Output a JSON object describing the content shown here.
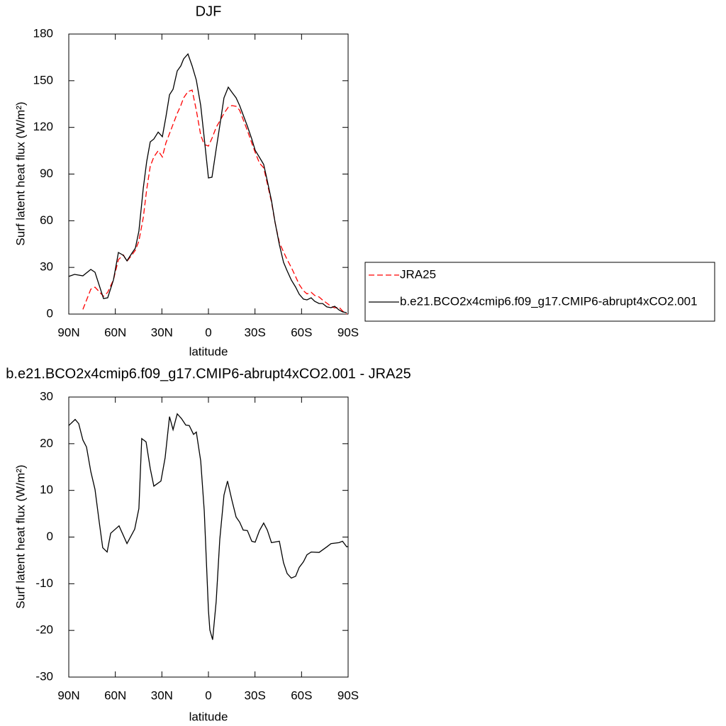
{
  "chart_data": [
    {
      "type": "line",
      "title": "DJF",
      "xlabel": "latitude",
      "ylabel": "Surf latent heat flux (W/m²)",
      "xlim": [
        90,
        -90
      ],
      "xticks": [
        {
          "value": 90,
          "label": "90N"
        },
        {
          "value": 60,
          "label": "60N"
        },
        {
          "value": 30,
          "label": "30N"
        },
        0,
        {
          "value": -30,
          "label": "30S"
        },
        {
          "value": -60,
          "label": "60S"
        },
        {
          "value": -90,
          "label": "90S"
        }
      ],
      "ylim": [
        0,
        180
      ],
      "yticks": [
        0,
        30,
        60,
        90,
        120,
        150,
        180
      ],
      "legend": "right",
      "x": [
        90,
        86.3,
        80.9,
        75.8,
        73.1,
        67.6,
        64.9,
        61.2,
        58,
        54.8,
        52.5,
        49.3,
        47.1,
        44.8,
        42,
        39.8,
        37.5,
        35.2,
        32.4,
        29.7,
        27.4,
        25.1,
        22.8,
        20.1,
        17.8,
        16,
        13.2,
        10.5,
        7.8,
        5,
        2.7,
        0,
        -2.3,
        -5,
        -7.8,
        -10,
        -12.8,
        -15.1,
        -17.8,
        -20.1,
        -22.4,
        -25.1,
        -27.9,
        -30.1,
        -32.9,
        -35.6,
        -37.9,
        -40.6,
        -42.9,
        -45.7,
        -48.4,
        -50.7,
        -53.4,
        -56.2,
        -58.5,
        -61.2,
        -63.5,
        -66.2,
        -68.5,
        -71.3,
        -73.6,
        -76.3,
        -79,
        -81.3,
        -84.1,
        -86.4,
        -89.1
      ],
      "series": [
        {
          "name": "JRA25",
          "color": "#ff0000",
          "linestyle": "dashed",
          "values": [
            null,
            null,
            3,
            16,
            17.3,
            11.4,
            14,
            22,
            35,
            38,
            34,
            38,
            41,
            47,
            62,
            80,
            95,
            101,
            105,
            101,
            110,
            116,
            122,
            129,
            134,
            139,
            143,
            144,
            131,
            115,
            109,
            108,
            113,
            120,
            125,
            129,
            133,
            134,
            133.5,
            131,
            125,
            118,
            110,
            104,
            97,
            94,
            84,
            72,
            59,
            46,
            40,
            35,
            30,
            24,
            19,
            15,
            13,
            14,
            12,
            11,
            9,
            7,
            5,
            4,
            4.5,
            2,
            0
          ]
        },
        {
          "name": "b.e21.BCO2x4cmip6.f09_g17.CMIP6-abrupt4xCO2.001",
          "color": "#000000",
          "linestyle": "solid",
          "values": [
            24.2,
            25.5,
            24.6,
            28.7,
            26.9,
            10,
            10.5,
            21.9,
            39.6,
            37.8,
            34.2,
            39.2,
            42.4,
            53.3,
            81,
            98,
            110.7,
            112.5,
            117,
            114,
            126.7,
            141,
            144.5,
            156.3,
            159.5,
            164,
            167.2,
            159.5,
            150.4,
            134,
            113,
            87.5,
            88,
            106,
            124.4,
            139,
            145.8,
            142.6,
            139,
            134,
            128,
            120.8,
            112.6,
            105.3,
            100.7,
            96.2,
            85.7,
            73,
            59.2,
            44.7,
            33.3,
            27.8,
            21.9,
            17.3,
            12.8,
            9.6,
            9.1,
            10.5,
            8.2,
            6.8,
            6.8,
            4.6,
            4.1,
            5,
            2.7,
            1.4,
            0.9
          ]
        }
      ]
    },
    {
      "type": "line",
      "title": "b.e21.BCO2x4cmip6.f09_g17.CMIP6-abrupt4xCO2.001 - JRA25",
      "xlabel": "latitude",
      "ylabel": "Surf latent heat flux (W/m²)",
      "xlim": [
        90,
        -90
      ],
      "xticks": [
        {
          "value": 90,
          "label": "90N"
        },
        {
          "value": 60,
          "label": "60N"
        },
        {
          "value": 30,
          "label": "30N"
        },
        0,
        {
          "value": -30,
          "label": "30S"
        },
        {
          "value": -60,
          "label": "60S"
        },
        {
          "value": -90,
          "label": "90S"
        }
      ],
      "ylim": [
        -30,
        30
      ],
      "yticks": [
        -30,
        -20,
        -10,
        0,
        10,
        20,
        30
      ],
      "color": "#000000",
      "x": [
        90,
        85.9,
        83.6,
        80.9,
        78.6,
        75.8,
        73.1,
        70.4,
        68.1,
        65.3,
        63,
        57.6,
        52.5,
        47.5,
        44.8,
        43,
        40.2,
        37.5,
        35.2,
        30.6,
        27.9,
        25.1,
        22.8,
        20.1,
        17.4,
        14.6,
        12.4,
        9.6,
        7.8,
        5,
        2.7,
        0,
        -0.9,
        -2.7,
        -5,
        -7.3,
        -10,
        -12.3,
        -15.1,
        -17.8,
        -20.1,
        -22.4,
        -25.1,
        -27.9,
        -30.1,
        -32.9,
        -35.6,
        -37.9,
        -40.6,
        -45.7,
        -48.4,
        -50.7,
        -53.4,
        -56.2,
        -58.5,
        -61.2,
        -63.5,
        -66.2,
        -71.3,
        -76.3,
        -79,
        -84.1,
        -86.4,
        -89.1,
        -90
      ],
      "values": [
        23.9,
        25.2,
        24.3,
        20.8,
        19.3,
        14,
        10.2,
        3.3,
        -2.3,
        -3.2,
        0.8,
        2.4,
        -1.4,
        1.7,
        6.1,
        21.1,
        20.4,
        14.7,
        10.9,
        12,
        17,
        25.8,
        23,
        26.4,
        25.4,
        24,
        23.9,
        22,
        22.5,
        16.3,
        5.6,
        -15.7,
        -19.9,
        -22,
        -13.8,
        -0.5,
        9,
        12,
        7.9,
        4.3,
        3.2,
        1.5,
        1.4,
        -0.9,
        -1.1,
        1.4,
        3,
        1.5,
        -1.2,
        -0.9,
        -5.5,
        -7.8,
        -8.8,
        -8.4,
        -6.5,
        -5.3,
        -3.8,
        -3.2,
        -3.3,
        -2.1,
        -1.4,
        -1.2,
        -0.9,
        -2.1,
        -2
      ]
    }
  ]
}
